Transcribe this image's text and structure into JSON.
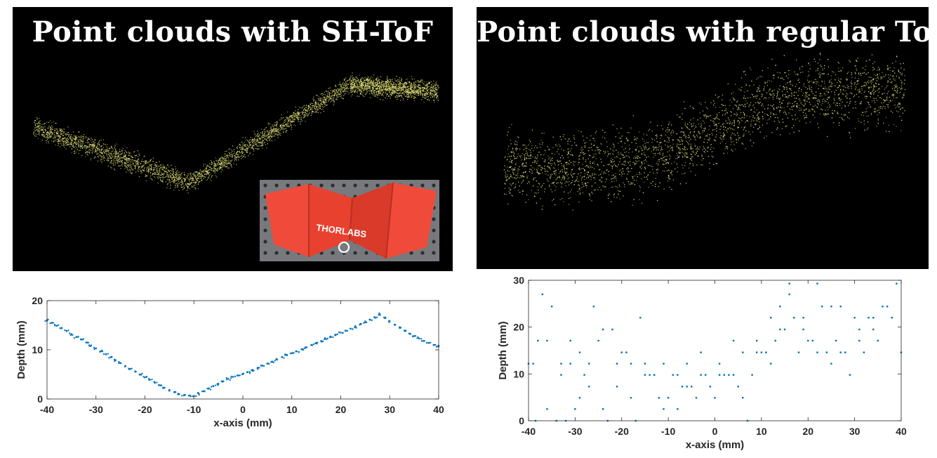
{
  "panels": {
    "left_title": "Point clouds with SH-ToF",
    "right_title": "Point clouds with regular ToF"
  },
  "inset_photo": {
    "logo_text": "THORLABS",
    "plate_color": "#f04b3a"
  },
  "colors": {
    "cloud_points": "#e6e67a",
    "plot_points": "#0072bd",
    "axis": "#262626",
    "panel_background": "#000000"
  },
  "chart_data": [
    {
      "type": "scatter",
      "title": "",
      "xlabel": "x-axis (mm)",
      "ylabel": "Depth (mm)",
      "xlim": [
        -40,
        40
      ],
      "ylim": [
        0,
        20
      ],
      "xticks": [
        -40,
        -30,
        -20,
        -10,
        0,
        10,
        20,
        30,
        40
      ],
      "yticks": [
        0,
        10,
        20
      ],
      "grid": false,
      "series": [
        {
          "x": [
            -40,
            -39,
            -38,
            -37,
            -36,
            -35,
            -34,
            -33,
            -32,
            -31,
            -30,
            -29,
            -28,
            -27,
            -26,
            -25,
            -24,
            -23,
            -22,
            -21,
            -20,
            -19,
            -18,
            -17,
            -16,
            -15,
            -14,
            -13,
            -12,
            -11,
            -10,
            -9,
            -8,
            -7,
            -6,
            -5,
            -4,
            -3,
            -2,
            -1,
            0,
            1,
            2,
            3,
            4,
            5,
            6,
            7,
            8,
            9,
            10,
            11,
            12,
            13,
            14,
            15,
            16,
            17,
            18,
            19,
            20,
            21,
            22,
            23,
            24,
            25,
            26,
            27,
            28,
            29,
            30,
            31,
            32,
            33,
            34,
            35,
            36,
            37,
            38,
            39,
            40
          ],
          "y": [
            16.0,
            15.5,
            14.9,
            14.4,
            13.8,
            13.2,
            12.6,
            12.1,
            11.5,
            10.9,
            10.3,
            9.7,
            9.1,
            8.5,
            7.9,
            7.3,
            6.7,
            6.1,
            5.6,
            5.0,
            4.4,
            3.9,
            3.3,
            2.8,
            2.3,
            1.8,
            1.4,
            1.0,
            0.8,
            0.7,
            0.6,
            1.1,
            1.6,
            2.1,
            2.6,
            3.1,
            3.6,
            4.1,
            4.5,
            4.8,
            5.1,
            5.5,
            5.9,
            6.3,
            6.8,
            7.2,
            7.6,
            8.0,
            8.5,
            8.9,
            9.3,
            9.7,
            10.1,
            10.5,
            11.0,
            11.4,
            11.8,
            12.2,
            12.6,
            13.1,
            13.5,
            13.9,
            14.3,
            14.8,
            15.2,
            15.6,
            16.1,
            16.6,
            17.2,
            16.5,
            15.8,
            15.1,
            14.5,
            13.9,
            13.3,
            12.8,
            12.3,
            11.8,
            11.4,
            11.0,
            10.7
          ]
        }
      ]
    },
    {
      "type": "scatter",
      "title": "",
      "xlabel": "x-axis (mm)",
      "ylabel": "Depth (mm)",
      "xlim": [
        -40,
        40
      ],
      "ylim": [
        0,
        30
      ],
      "xticks": [
        -40,
        -30,
        -20,
        -10,
        0,
        10,
        20,
        30,
        40
      ],
      "yticks": [
        0,
        10,
        20,
        30
      ],
      "grid": false,
      "series": [
        {
          "x": [
            -40,
            -39,
            -38,
            -37,
            -36,
            -35,
            -34,
            -33,
            -32,
            -31,
            -30,
            -29,
            -28,
            -27,
            -26,
            -25,
            -24,
            -23,
            -22,
            -21,
            -20,
            -19,
            -18,
            -17,
            -16,
            -15,
            -14,
            -13,
            -12,
            -11,
            -10,
            -9,
            -8,
            -7,
            -6,
            -5,
            -4,
            -3,
            -2,
            -1,
            0,
            1,
            2,
            3,
            4,
            5,
            6,
            7,
            8,
            9,
            10,
            11,
            12,
            13,
            14,
            15,
            16,
            17,
            18,
            19,
            20,
            21,
            22,
            23,
            24,
            25,
            26,
            27,
            28,
            29,
            30,
            31,
            32,
            33,
            34,
            35,
            36,
            37,
            38,
            39,
            40,
            -38.5,
            -36,
            -33,
            -31,
            -29,
            -27,
            -24,
            -21,
            -18,
            -15,
            -13,
            -11,
            -8,
            -6,
            -3,
            1,
            4,
            6,
            9,
            12,
            14,
            16,
            19,
            22,
            25,
            27,
            31,
            34,
            38
          ],
          "y": [
            12.2,
            12.2,
            17.1,
            27.0,
            2.5,
            24.4,
            0.0,
            12.2,
            0.0,
            17.1,
            2.5,
            4.9,
            9.8,
            12.2,
            24.4,
            17.1,
            19.5,
            0.0,
            19.5,
            12.2,
            14.6,
            14.6,
            12.2,
            0.0,
            22.0,
            12.2,
            9.8,
            9.8,
            4.9,
            2.5,
            4.9,
            9.8,
            2.5,
            7.3,
            7.3,
            7.3,
            4.9,
            14.6,
            9.8,
            7.3,
            4.9,
            9.8,
            9.8,
            9.8,
            9.8,
            7.3,
            4.9,
            0.0,
            9.8,
            14.6,
            14.6,
            14.6,
            12.2,
            17.1,
            19.5,
            19.5,
            27.0,
            22.0,
            14.6,
            19.5,
            17.1,
            17.1,
            14.6,
            24.4,
            14.6,
            12.2,
            17.1,
            14.6,
            14.6,
            9.8,
            22.0,
            17.1,
            14.6,
            22.0,
            22.0,
            17.1,
            24.4,
            24.4,
            22.0,
            29.3,
            14.6,
            0.0,
            17.1,
            9.8,
            12.2,
            14.6,
            7.3,
            2.5,
            7.3,
            4.9,
            9.8,
            9.8,
            12.2,
            9.8,
            12.2,
            9.8,
            12.2,
            17.1,
            14.6,
            17.1,
            22.0,
            24.4,
            29.3,
            22.0,
            29.3,
            24.4,
            24.4,
            19.5,
            19.5,
            22.0
          ]
        }
      ]
    }
  ]
}
